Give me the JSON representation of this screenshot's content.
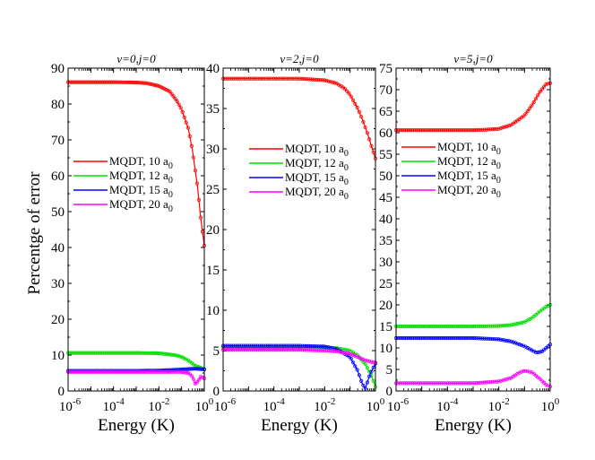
{
  "figure": {
    "ylabel": "Percentge of error",
    "xlabel": "Energy (K)",
    "x_tick_base": "10",
    "x_tick_exponents": [
      "-6",
      "-4",
      "-2",
      "0"
    ]
  },
  "chart_data": [
    {
      "type": "line",
      "title": "v=0,j=0",
      "xlabel": "Energy (K)",
      "ylabel": "Percentge of error",
      "xscale": "log",
      "xlim": [
        1e-06,
        1
      ],
      "ylim": [
        0,
        90
      ],
      "yticks": [
        0,
        10,
        20,
        30,
        40,
        50,
        60,
        70,
        80,
        90
      ],
      "legend_position": "center-left",
      "series": [
        {
          "name": "MQDT, 10 a0",
          "label": "MQDT, 10 a",
          "sub": "0",
          "color": "#ff0000",
          "x": [
            1e-06,
            1e-05,
            0.0001,
            0.001,
            0.003,
            0.01,
            0.03,
            0.06,
            0.1,
            0.2,
            0.3,
            0.5,
            0.7,
            1.0
          ],
          "y": [
            86.1,
            86.1,
            86.1,
            86.0,
            85.8,
            85.0,
            83.5,
            81.0,
            78.5,
            73.0,
            67.0,
            57.0,
            48.0,
            40.5
          ]
        },
        {
          "name": "MQDT, 12 a0",
          "label": "MQDT, 12 a",
          "sub": "0",
          "color": "#00dd00",
          "x": [
            1e-06,
            0.0001,
            0.001,
            0.01,
            0.05,
            0.1,
            0.2,
            0.4,
            0.7,
            1.0
          ],
          "y": [
            10.6,
            10.6,
            10.6,
            10.5,
            10.0,
            9.5,
            8.5,
            7.0,
            6.5,
            6.0
          ]
        },
        {
          "name": "MQDT, 15 a0",
          "label": "MQDT, 15 a",
          "sub": "0",
          "color": "#0000ff",
          "x": [
            1e-06,
            0.0001,
            0.001,
            0.01,
            0.05,
            0.1,
            0.2,
            0.4,
            0.7,
            1.0
          ],
          "y": [
            5.6,
            5.6,
            5.6,
            5.7,
            5.9,
            6.0,
            6.1,
            6.2,
            6.1,
            6.0
          ]
        },
        {
          "name": "MQDT, 20 a0",
          "label": "MQDT, 20 a",
          "sub": "0",
          "color": "#ff00ff",
          "x": [
            1e-06,
            0.0001,
            0.001,
            0.01,
            0.05,
            0.1,
            0.2,
            0.3,
            0.4,
            0.5,
            0.7,
            1.0
          ],
          "y": [
            5.3,
            5.3,
            5.3,
            5.3,
            5.3,
            5.3,
            5.0,
            4.0,
            2.0,
            2.5,
            4.0,
            3.5
          ]
        }
      ]
    },
    {
      "type": "line",
      "title": "v=2,j=0",
      "xlabel": "Energy (K)",
      "ylabel": "",
      "xscale": "log",
      "xlim": [
        1e-06,
        1
      ],
      "ylim": [
        0,
        40
      ],
      "yticks": [
        0,
        5,
        10,
        15,
        20,
        25,
        30,
        35,
        40
      ],
      "legend_position": "center",
      "series": [
        {
          "name": "MQDT, 10 a0",
          "label": "MQDT, 10 a",
          "sub": "0",
          "color": "#ff0000",
          "x": [
            1e-06,
            1e-05,
            0.0001,
            0.001,
            0.01,
            0.03,
            0.06,
            0.1,
            0.2,
            0.3,
            0.5,
            0.7,
            1.0
          ],
          "y": [
            38.7,
            38.7,
            38.7,
            38.7,
            38.5,
            38.1,
            37.5,
            36.7,
            35.0,
            33.7,
            31.8,
            30.3,
            28.8
          ]
        },
        {
          "name": "MQDT, 12 a0",
          "label": "MQDT, 12 a",
          "sub": "0",
          "color": "#00dd00",
          "x": [
            1e-06,
            0.0001,
            0.001,
            0.01,
            0.03,
            0.1,
            0.2,
            0.4,
            0.7,
            1.0
          ],
          "y": [
            5.4,
            5.4,
            5.4,
            5.4,
            5.3,
            5.0,
            4.4,
            3.3,
            1.9,
            0.5
          ]
        },
        {
          "name": "MQDT, 15 a0",
          "label": "MQDT, 15 a",
          "sub": "0",
          "color": "#0000ff",
          "x": [
            1e-06,
            0.0001,
            0.001,
            0.01,
            0.03,
            0.1,
            0.2,
            0.3,
            0.4,
            0.6,
            1.0
          ],
          "y": [
            5.6,
            5.6,
            5.6,
            5.5,
            5.2,
            4.2,
            2.5,
            0.9,
            0.3,
            2.0,
            3.4
          ]
        },
        {
          "name": "MQDT, 20 a0",
          "label": "MQDT, 20 a",
          "sub": "0",
          "color": "#ff00ff",
          "x": [
            1e-06,
            0.0001,
            0.001,
            0.01,
            0.03,
            0.1,
            0.2,
            0.4,
            0.7,
            1.0
          ],
          "y": [
            5.1,
            5.1,
            5.1,
            5.0,
            4.9,
            4.6,
            4.2,
            3.8,
            3.6,
            3.5
          ]
        }
      ]
    },
    {
      "type": "line",
      "title": "v=5,j=0",
      "xlabel": "Energy (K)",
      "ylabel": "",
      "xscale": "log",
      "xlim": [
        1e-06,
        1
      ],
      "ylim": [
        0,
        75
      ],
      "yticks": [
        0,
        5,
        10,
        15,
        20,
        25,
        30,
        35,
        40,
        45,
        50,
        55,
        60,
        65,
        70,
        75
      ],
      "legend_position": "center",
      "series": [
        {
          "name": "MQDT, 10 a0",
          "label": "MQDT, 10 a",
          "sub": "0",
          "color": "#ff0000",
          "x": [
            1e-06,
            0.0001,
            0.001,
            0.003,
            0.01,
            0.03,
            0.1,
            0.2,
            0.4,
            0.7,
            1.0
          ],
          "y": [
            60.6,
            60.6,
            60.6,
            60.7,
            60.9,
            61.8,
            64.0,
            66.5,
            69.5,
            71.3,
            71.5
          ]
        },
        {
          "name": "MQDT, 12 a0",
          "label": "MQDT, 12 a",
          "sub": "0",
          "color": "#00dd00",
          "x": [
            1e-06,
            0.0001,
            0.001,
            0.01,
            0.03,
            0.1,
            0.2,
            0.4,
            0.7,
            1.0
          ],
          "y": [
            15.0,
            15.0,
            15.0,
            15.1,
            15.3,
            16.0,
            17.0,
            18.5,
            19.6,
            20.0
          ]
        },
        {
          "name": "MQDT, 15 a0",
          "label": "MQDT, 15 a",
          "sub": "0",
          "color": "#0000ff",
          "x": [
            1e-06,
            0.0001,
            0.001,
            0.01,
            0.03,
            0.1,
            0.2,
            0.3,
            0.5,
            0.7,
            1.0
          ],
          "y": [
            12.3,
            12.3,
            12.3,
            12.0,
            11.5,
            10.4,
            9.4,
            8.9,
            9.2,
            10.0,
            10.8
          ]
        },
        {
          "name": "MQDT, 20 a0",
          "label": "MQDT, 20 a",
          "sub": "0",
          "color": "#ff00ff",
          "x": [
            1e-06,
            0.0001,
            0.001,
            0.01,
            0.03,
            0.06,
            0.1,
            0.2,
            0.4,
            0.7,
            1.0
          ],
          "y": [
            1.8,
            1.8,
            1.8,
            2.2,
            3.0,
            4.2,
            4.7,
            4.3,
            2.8,
            1.4,
            1.0
          ]
        }
      ]
    }
  ]
}
